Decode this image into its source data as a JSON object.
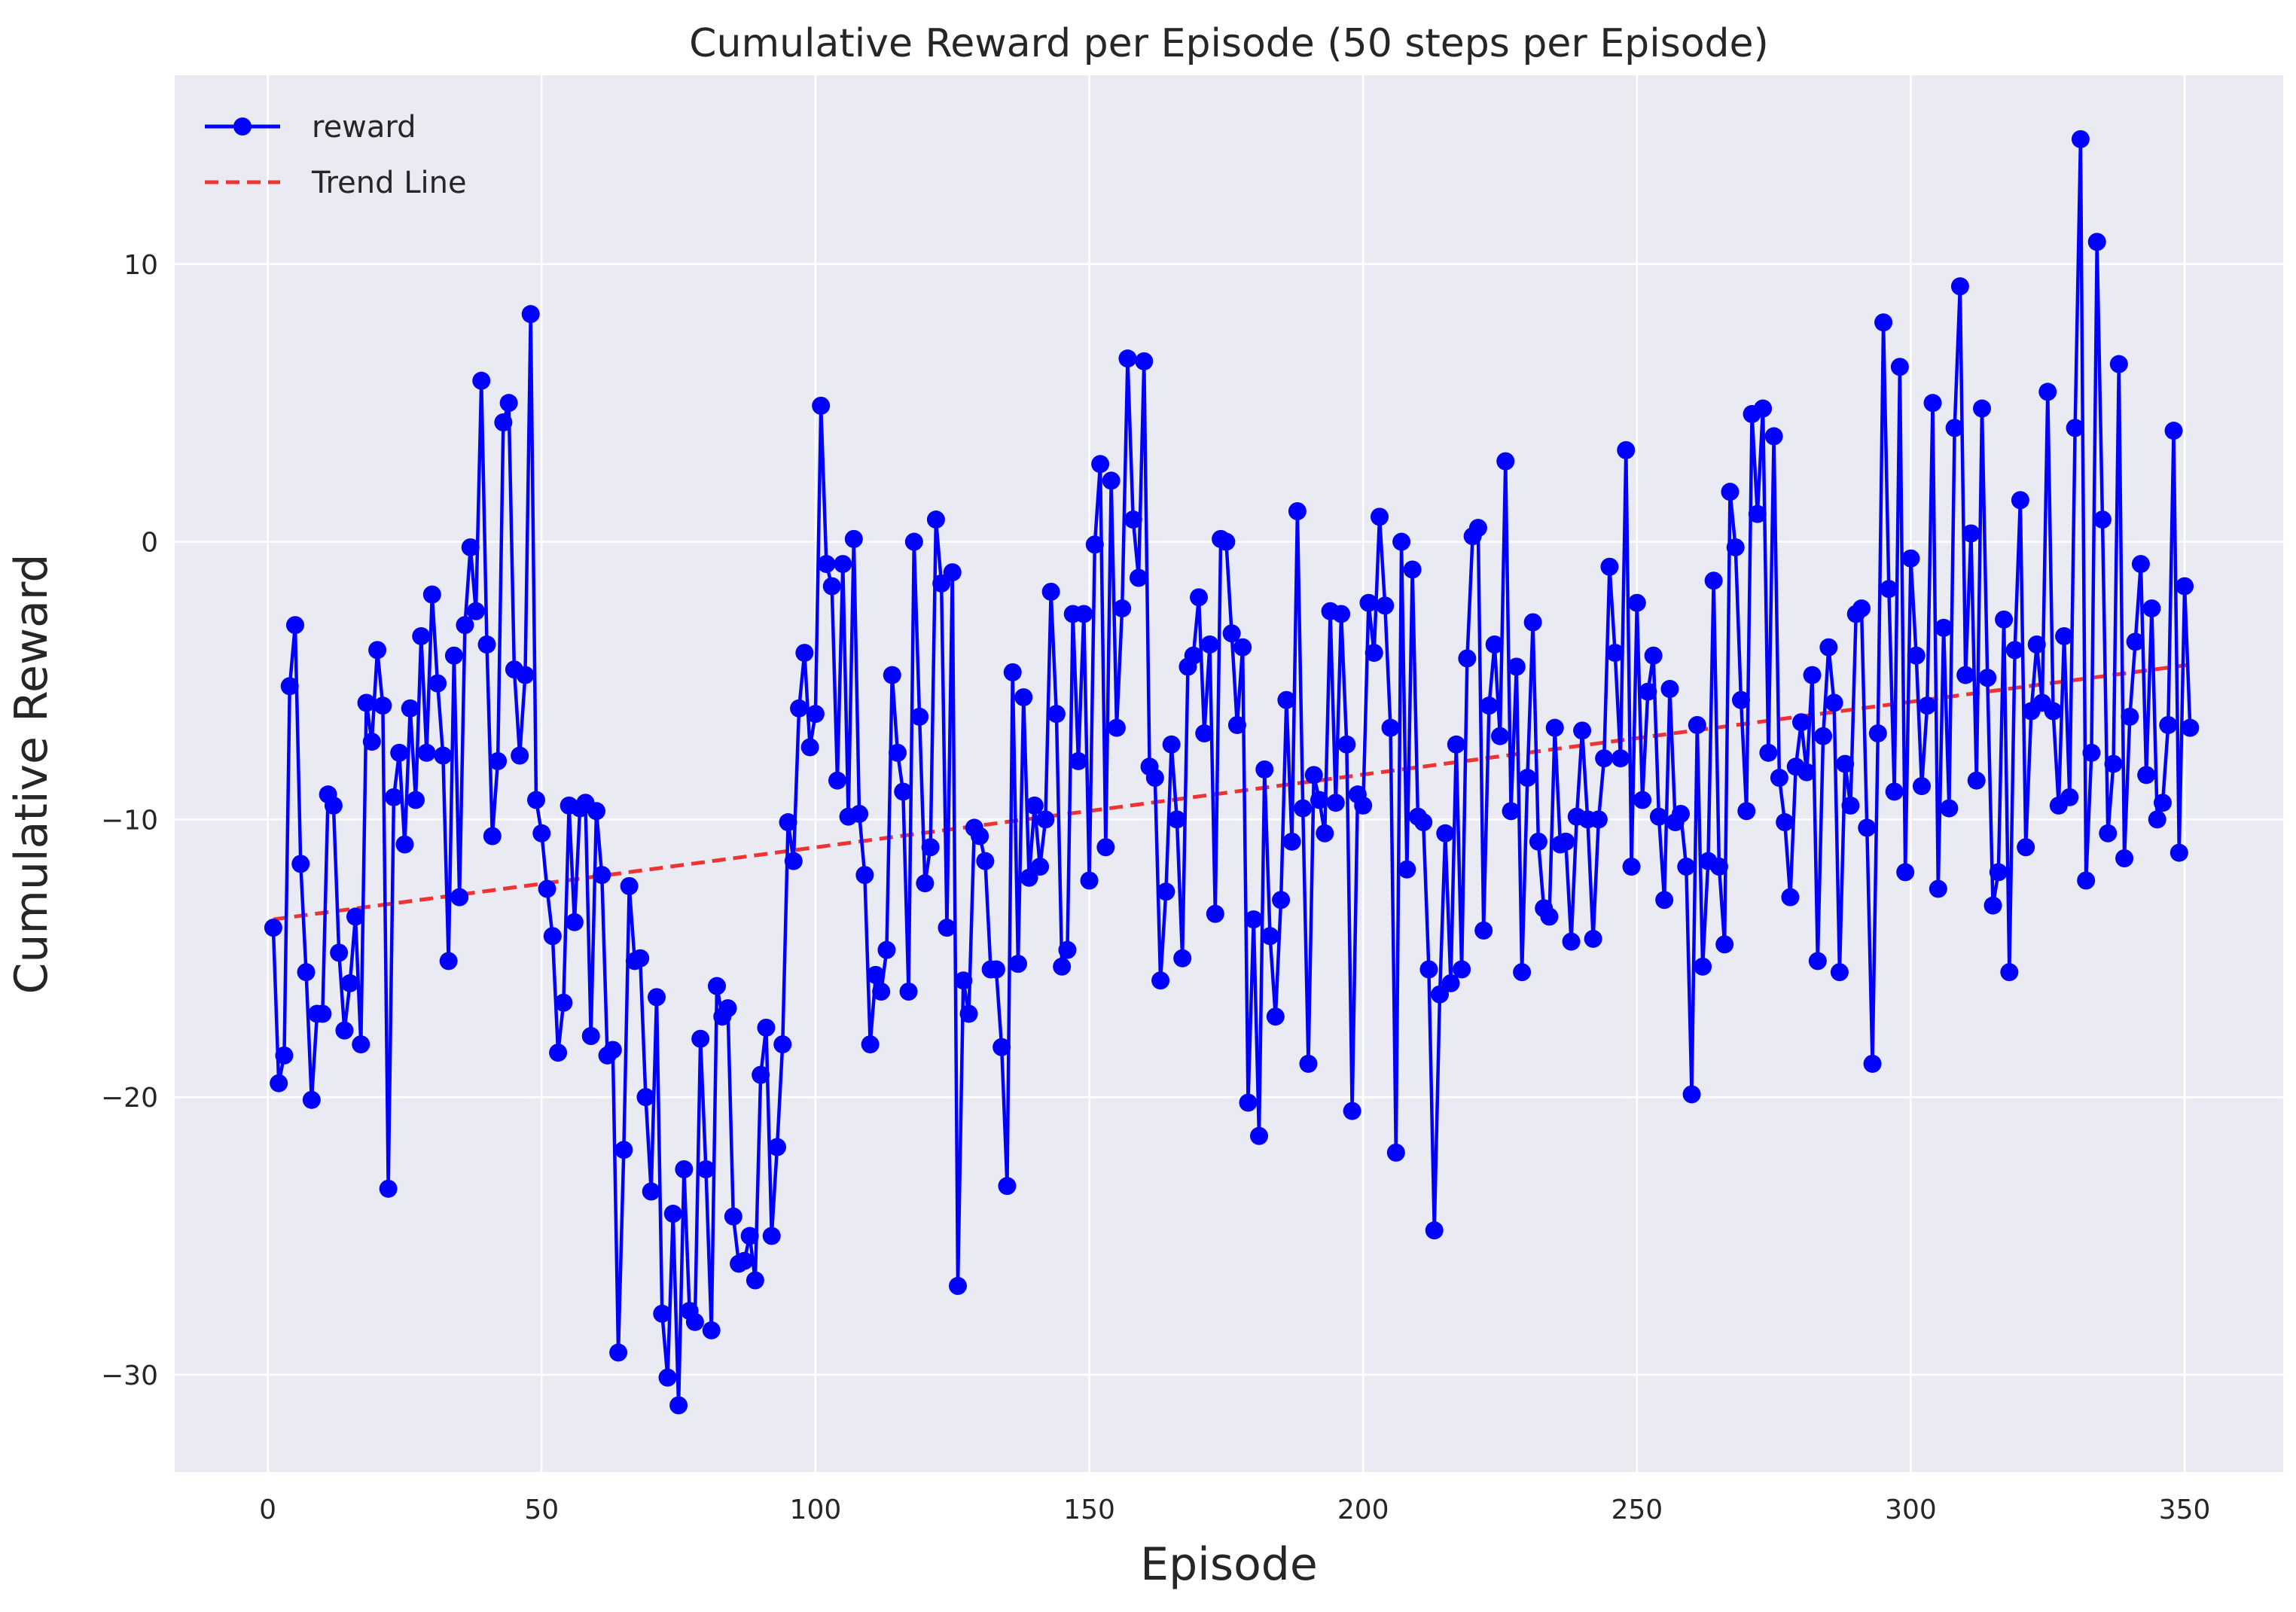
{
  "chart_data": {
    "type": "line",
    "title": "Cumulative Reward per Episode (50 steps per Episode)",
    "xlabel": "Episode",
    "ylabel": "Cumulative Reward",
    "xlim": [
      -17,
      368
    ],
    "ylim": [
      -33.5,
      16.8
    ],
    "xticks": [
      0,
      50,
      100,
      150,
      200,
      250,
      300,
      350
    ],
    "yticks": [
      -30,
      -20,
      -10,
      0,
      10
    ],
    "ytick_labels": [
      "−30",
      "−20",
      "−10",
      "0",
      "10"
    ],
    "grid": true,
    "legend_position": "top-left",
    "colors": {
      "background": "#eaeaf2",
      "grid": "#ffffff",
      "series": "#0000ff",
      "trend": "#ee3333"
    },
    "series": [
      {
        "name": "reward",
        "style": "line-with-markers",
        "x_start": 1,
        "values": [
          -13.9,
          -19.5,
          -18.5,
          -5.2,
          -3.0,
          -11.6,
          -15.5,
          -20.1,
          -17.0,
          -17.0,
          -9.1,
          -9.5,
          -14.8,
          -17.6,
          -15.9,
          -13.5,
          -18.1,
          -5.8,
          -7.2,
          -3.9,
          -5.9,
          -23.3,
          -9.2,
          -7.6,
          -10.9,
          -6.0,
          -9.3,
          -3.4,
          -7.6,
          -1.9,
          -5.1,
          -7.7,
          -15.1,
          -4.1,
          -12.8,
          -3.0,
          -0.2,
          -2.5,
          5.8,
          -3.7,
          -10.6,
          -7.9,
          4.3,
          5.0,
          -4.6,
          -7.7,
          -4.8,
          8.2,
          -9.3,
          -10.5,
          -12.5,
          -14.2,
          -18.4,
          -16.6,
          -9.5,
          -13.7,
          -9.6,
          -9.4,
          -17.8,
          -9.7,
          -12.0,
          -18.5,
          -18.3,
          -29.2,
          -21.9,
          -12.4,
          -15.1,
          -15.0,
          -20.0,
          -23.4,
          -16.4,
          -27.8,
          -30.1,
          -24.2,
          -31.1,
          -22.6,
          -27.7,
          -28.1,
          -17.9,
          -22.6,
          -28.4,
          -16.0,
          -17.1,
          -16.8,
          -24.3,
          -26.0,
          -25.9,
          -25.0,
          -26.6,
          -19.2,
          -17.5,
          -25.0,
          -21.8,
          -18.1,
          -10.1,
          -11.5,
          -6.0,
          -4.0,
          -7.4,
          -6.2,
          4.9,
          -0.8,
          -1.6,
          -8.6,
          -0.8,
          -9.9,
          0.1,
          -9.8,
          -12.0,
          -18.1,
          -15.6,
          -16.2,
          -14.7,
          -4.8,
          -7.6,
          -9.0,
          -16.2,
          0.0,
          -6.3,
          -12.3,
          -11.0,
          0.8,
          -1.5,
          -13.9,
          -1.1,
          -26.8,
          -15.8,
          -17.0,
          -10.3,
          -10.6,
          -11.5,
          -15.4,
          -15.4,
          -18.2,
          -23.2,
          -4.7,
          -15.2,
          -5.6,
          -12.1,
          -9.5,
          -11.7,
          -10.0,
          -1.8,
          -6.2,
          -15.3,
          -14.7,
          -2.6,
          -7.9,
          -2.6,
          -12.2,
          -0.1,
          2.8,
          -11.0,
          2.2,
          -6.7,
          -2.4,
          6.6,
          0.8,
          -1.3,
          6.5,
          -8.1,
          -8.5,
          -15.8,
          -12.6,
          -7.3,
          -10.0,
          -15.0,
          -4.5,
          -4.1,
          -2.0,
          -6.9,
          -3.7,
          -13.4,
          0.1,
          0.0,
          -3.3,
          -6.6,
          -3.8,
          -20.2,
          -13.6,
          -21.4,
          -8.2,
          -14.2,
          -17.1,
          -12.9,
          -5.7,
          -10.8,
          1.1,
          -9.6,
          -18.8,
          -8.4,
          -9.3,
          -10.5,
          -2.5,
          -9.4,
          -2.6,
          -7.3,
          -20.5,
          -9.1,
          -9.5,
          -2.2,
          -4.0,
          0.9,
          -2.3,
          -6.7,
          -22.0,
          0.0,
          -11.8,
          -1.0,
          -9.9,
          -10.1,
          -15.4,
          -24.8,
          -16.3,
          -10.5,
          -15.9,
          -7.3,
          -15.4,
          -4.2,
          0.2,
          0.5,
          -14.0,
          -5.9,
          -3.7,
          -7.0,
          2.9,
          -9.7,
          -4.5,
          -15.5,
          -8.5,
          -2.9,
          -10.8,
          -13.2,
          -13.5,
          -6.7,
          -10.9,
          -10.8,
          -14.4,
          -9.9,
          -6.8,
          -10.0,
          -14.3,
          -10.0,
          -7.8,
          -0.9,
          -4.0,
          -7.8,
          3.3,
          -11.7,
          -2.2,
          -9.3,
          -5.4,
          -4.1,
          -9.9,
          -12.9,
          -5.3,
          -10.1,
          -9.8,
          -11.7,
          -19.9,
          -6.6,
          -15.3,
          -11.5,
          -1.4,
          -11.7,
          -14.5,
          1.8,
          -0.2,
          -5.7,
          -9.7,
          4.6,
          1.0,
          4.8,
          -7.6,
          3.8,
          -8.5,
          -10.1,
          -12.8,
          -8.1,
          -6.5,
          -8.3,
          -4.8,
          -15.1,
          -7.0,
          -3.8,
          -5.8,
          -15.5,
          -8.0,
          -9.5,
          -2.6,
          -2.4,
          -10.3,
          -18.8,
          -6.9,
          7.9,
          -1.7,
          -9.0,
          6.3,
          -11.9,
          -0.6,
          -4.1,
          -8.8,
          -5.9,
          5.0,
          -12.5,
          -3.1,
          -9.6,
          4.1,
          9.2,
          -4.8,
          0.3,
          -8.6,
          4.8,
          -4.9,
          -13.1,
          -11.9,
          -2.8,
          -15.5,
          -3.9,
          1.5,
          -11.0,
          -6.1,
          -3.7,
          -5.8,
          5.4,
          -6.1,
          -9.5,
          -3.4,
          -9.2,
          4.1,
          14.5,
          -12.2,
          -7.6,
          10.8,
          0.8,
          -10.5,
          -8.0,
          6.4,
          -11.4,
          -6.3,
          -3.6,
          -0.8,
          -8.4,
          -2.4,
          -10.0,
          -9.4,
          -6.6,
          4.0,
          -11.2,
          -1.6,
          -6.7
        ]
      },
      {
        "name": "Trend Line",
        "style": "dashed",
        "x": [
          1,
          352
        ],
        "y": [
          -13.6,
          -4.4
        ]
      }
    ]
  }
}
